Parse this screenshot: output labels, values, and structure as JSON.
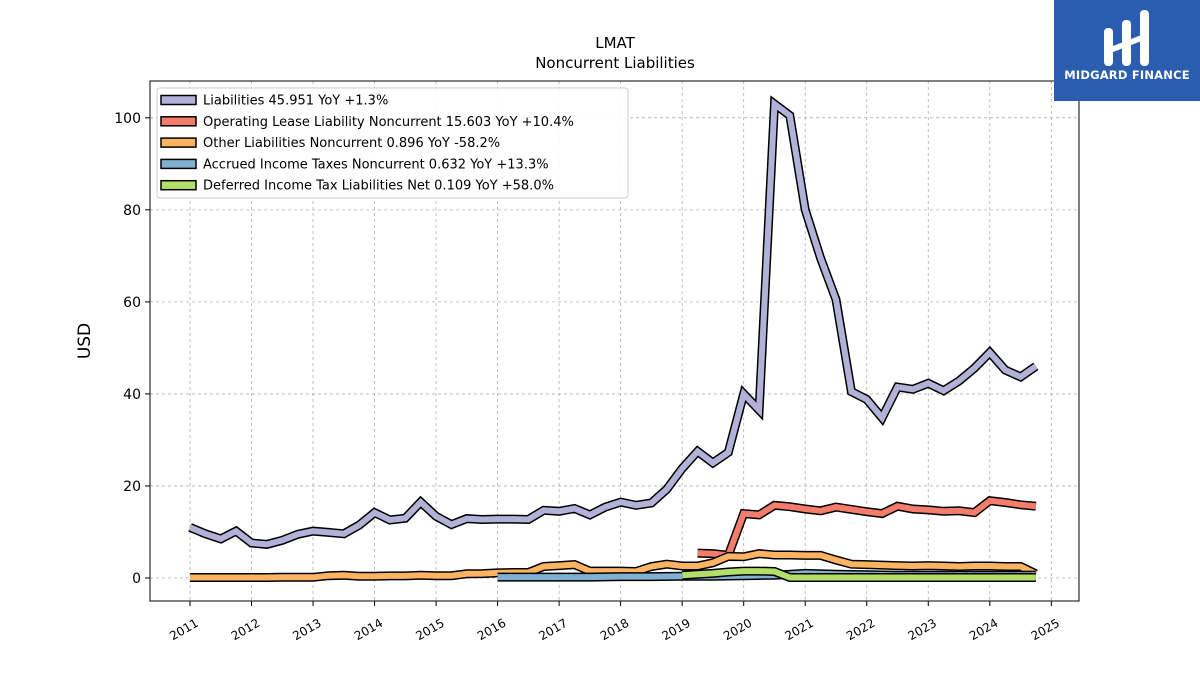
{
  "chart_data": {
    "type": "line",
    "title": "LMAT",
    "subtitle": "Noncurrent  Liabilities",
    "ylabel": "USD",
    "xlabel": "",
    "xlim": [
      2010.35,
      2025.45
    ],
    "ylim": [
      -5,
      108
    ],
    "x_ticks": [
      "2011",
      "2012",
      "2013",
      "2014",
      "2015",
      "2016",
      "2017",
      "2018",
      "2019",
      "2020",
      "2021",
      "2022",
      "2023",
      "2024",
      "2025"
    ],
    "y_ticks": [
      0,
      20,
      40,
      60,
      80,
      100
    ],
    "grid": true,
    "legend_position": "top-left",
    "series": [
      {
        "name": "Liabilities  45.951 YoY +1.3%",
        "color": "#b3b1d7",
        "x": [
          2011.0,
          2011.25,
          2011.5,
          2011.75,
          2012.0,
          2012.25,
          2012.5,
          2012.75,
          2013.0,
          2013.25,
          2013.5,
          2013.75,
          2014.0,
          2014.25,
          2014.5,
          2014.75,
          2015.0,
          2015.25,
          2015.5,
          2015.75,
          2016.0,
          2016.25,
          2016.5,
          2016.75,
          2017.0,
          2017.25,
          2017.5,
          2017.75,
          2018.0,
          2018.25,
          2018.5,
          2018.75,
          2019.0,
          2019.25,
          2019.5,
          2019.75,
          2020.0,
          2020.25,
          2020.5,
          2020.75,
          2021.0,
          2021.25,
          2021.5,
          2021.75,
          2022.0,
          2022.25,
          2022.5,
          2022.75,
          2023.0,
          2023.25,
          2023.5,
          2023.75,
          2024.0,
          2024.25,
          2024.5,
          2024.75
        ],
        "values": [
          11,
          9.6,
          8.5,
          10.2,
          7.6,
          7.3,
          8.2,
          9.5,
          10.2,
          9.9,
          9.6,
          11.5,
          14.2,
          12.6,
          13.0,
          16.5,
          13.4,
          11.6,
          12.9,
          12.7,
          12.8,
          12.8,
          12.7,
          14.7,
          14.5,
          15.1,
          13.7,
          15.4,
          16.5,
          15.8,
          16.3,
          19.3,
          23.8,
          27.5,
          25.0,
          27.3,
          40.0,
          36.5,
          103.0,
          100.5,
          80.0,
          69.5,
          60.5,
          40.5,
          38.8,
          34.8,
          41.5,
          41.0,
          42.3,
          40.7,
          42.8,
          45.6,
          49.0,
          45.2,
          43.7,
          46.0
        ]
      },
      {
        "name": "Operating Lease Liability Noncurrent  15.603 YoY +10.4%",
        "color": "#f47c6b",
        "x": [
          2019.25,
          2019.5,
          2019.75,
          2020.0,
          2020.25,
          2020.5,
          2020.75,
          2021.0,
          2021.25,
          2021.5,
          2021.75,
          2022.0,
          2022.25,
          2022.5,
          2022.75,
          2023.0,
          2023.25,
          2023.5,
          2023.75,
          2024.0,
          2024.25,
          2024.5,
          2024.75
        ],
        "values": [
          5.4,
          5.3,
          4.9,
          14.0,
          13.7,
          15.8,
          15.5,
          15.0,
          14.6,
          15.4,
          14.9,
          14.4,
          14.0,
          15.6,
          15.0,
          14.8,
          14.5,
          14.6,
          14.2,
          16.8,
          16.4,
          15.9,
          15.6
        ]
      },
      {
        "name": "Other Liabilities Noncurrent  0.896 YoY -58.2%",
        "color": "#fdb462",
        "x": [
          2011.0,
          2011.25,
          2011.5,
          2011.75,
          2012.0,
          2012.25,
          2012.5,
          2012.75,
          2013.0,
          2013.25,
          2013.5,
          2013.75,
          2014.0,
          2014.25,
          2014.5,
          2014.75,
          2015.0,
          2015.25,
          2015.5,
          2015.75,
          2016.0,
          2016.25,
          2016.5,
          2016.75,
          2017.0,
          2017.25,
          2017.5,
          2017.75,
          2018.0,
          2018.25,
          2018.5,
          2018.75,
          2019.0,
          2019.25,
          2019.5,
          2019.75,
          2020.0,
          2020.25,
          2020.5,
          2020.75,
          2021.0,
          2021.25,
          2021.5,
          2021.75,
          2022.0,
          2022.25,
          2022.5,
          2022.75,
          2023.0,
          2023.25,
          2023.5,
          2023.75,
          2024.0,
          2024.25,
          2024.5,
          2024.75
        ],
        "values": [
          0.1,
          0.1,
          0.1,
          0.1,
          0.1,
          0.1,
          0.15,
          0.15,
          0.15,
          0.5,
          0.6,
          0.4,
          0.4,
          0.45,
          0.45,
          0.6,
          0.5,
          0.5,
          0.9,
          0.95,
          1.1,
          1.2,
          1.2,
          2.5,
          2.7,
          2.9,
          1.5,
          1.5,
          1.5,
          1.4,
          2.5,
          3.0,
          2.6,
          2.6,
          3.3,
          4.7,
          4.6,
          5.3,
          5.0,
          5.0,
          4.9,
          4.9,
          3.9,
          3.0,
          2.9,
          2.8,
          2.7,
          2.6,
          2.7,
          2.6,
          2.5,
          2.6,
          2.6,
          2.5,
          2.5,
          0.9
        ]
      },
      {
        "name": "Accrued Income Taxes Noncurrent  0.632 YoY +13.3%",
        "color": "#80b1d3",
        "x": [
          2016.0,
          2016.5,
          2017.0,
          2017.5,
          2018.0,
          2018.5,
          2019.0,
          2019.5,
          2020.0,
          2020.5,
          2021.0,
          2021.5,
          2022.0,
          2022.5,
          2023.0,
          2023.5,
          2024.0,
          2024.5,
          2024.75
        ],
        "values": [
          0.2,
          0.2,
          0.2,
          0.2,
          0.3,
          0.3,
          0.4,
          0.4,
          0.5,
          0.6,
          1.0,
          0.8,
          0.7,
          0.6,
          0.6,
          0.6,
          0.6,
          0.6,
          0.63
        ]
      },
      {
        "name": "Deferred Income Tax Liabilities Net  0.109 YoY +58.0%",
        "color": "#b3de69",
        "x": [
          2019.0,
          2019.25,
          2019.5,
          2019.75,
          2020.0,
          2020.25,
          2020.5,
          2020.75,
          2021.0,
          2021.25,
          2021.5,
          2021.75,
          2022.0,
          2022.5,
          2023.0,
          2023.5,
          2024.0,
          2024.5,
          2024.75
        ],
        "values": [
          0.6,
          0.8,
          1.0,
          1.3,
          1.5,
          1.5,
          1.4,
          0.1,
          0.1,
          0.1,
          0.1,
          0.1,
          0.1,
          0.1,
          0.1,
          0.1,
          0.1,
          0.1,
          0.109
        ]
      }
    ]
  },
  "brand": {
    "name": "MIDGARD FINANCE",
    "color": "#2a5db0"
  }
}
